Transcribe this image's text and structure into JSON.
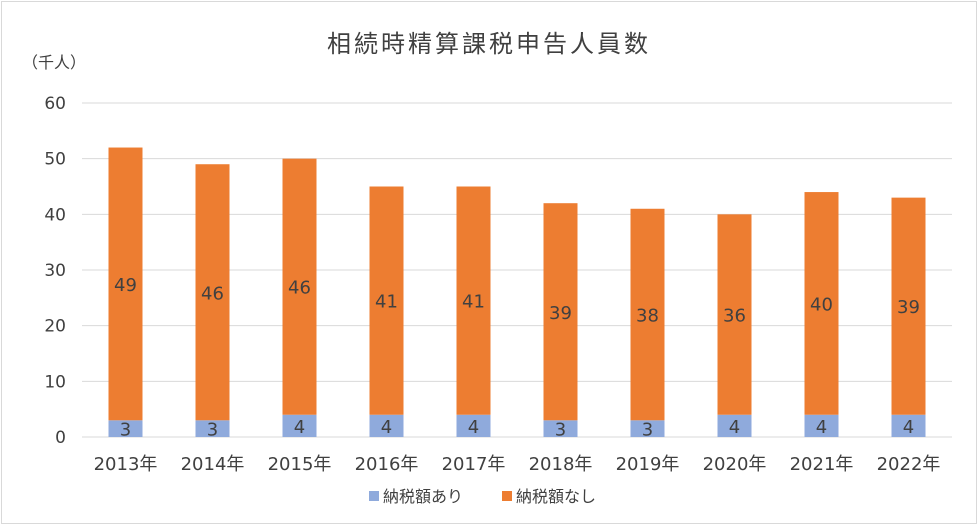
{
  "chart_data": {
    "type": "bar",
    "stacked": true,
    "title": "相続時精算課税申告人員数",
    "ylabel": "（千人）",
    "xlabel": "",
    "ylim": [
      0,
      60
    ],
    "yticks": [
      0,
      10,
      20,
      30,
      40,
      50,
      60
    ],
    "grid": true,
    "legend_position": "bottom",
    "categories": [
      "2013年",
      "2014年",
      "2015年",
      "2016年",
      "2017年",
      "2018年",
      "2019年",
      "2020年",
      "2021年",
      "2022年"
    ],
    "series": [
      {
        "name": "納税額あり",
        "color": "#8faadc",
        "values": [
          3,
          3,
          4,
          4,
          4,
          3,
          3,
          4,
          4,
          4
        ]
      },
      {
        "name": "納税額なし",
        "color": "#ed7d31",
        "values": [
          49,
          46,
          46,
          41,
          41,
          39,
          38,
          36,
          40,
          39
        ]
      }
    ]
  }
}
